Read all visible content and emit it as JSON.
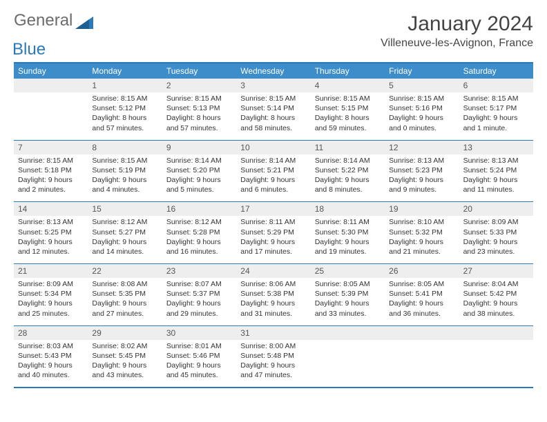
{
  "logo": {
    "word1": "General",
    "word2": "Blue"
  },
  "title": "January 2024",
  "location": "Villeneuve-les-Avignon, France",
  "day_headers": [
    "Sunday",
    "Monday",
    "Tuesday",
    "Wednesday",
    "Thursday",
    "Friday",
    "Saturday"
  ],
  "colors": {
    "header_bg": "#3c8dca",
    "border": "#2a7ab9",
    "daynum_bg": "#eeeeee",
    "text": "#333333",
    "logo_gray": "#6b6b6b",
    "logo_blue": "#2a7ab9"
  },
  "layout": {
    "columns": 7,
    "rows": 5,
    "cell_fontsize_pt": 8,
    "header_fontsize_pt": 9,
    "title_fontsize_pt": 22
  },
  "weeks": [
    {
      "days": [
        {
          "num": "",
          "sunrise": "",
          "sunset": "",
          "daylight1": "",
          "daylight2": ""
        },
        {
          "num": "1",
          "sunrise": "Sunrise: 8:15 AM",
          "sunset": "Sunset: 5:12 PM",
          "daylight1": "Daylight: 8 hours",
          "daylight2": "and 57 minutes."
        },
        {
          "num": "2",
          "sunrise": "Sunrise: 8:15 AM",
          "sunset": "Sunset: 5:13 PM",
          "daylight1": "Daylight: 8 hours",
          "daylight2": "and 57 minutes."
        },
        {
          "num": "3",
          "sunrise": "Sunrise: 8:15 AM",
          "sunset": "Sunset: 5:14 PM",
          "daylight1": "Daylight: 8 hours",
          "daylight2": "and 58 minutes."
        },
        {
          "num": "4",
          "sunrise": "Sunrise: 8:15 AM",
          "sunset": "Sunset: 5:15 PM",
          "daylight1": "Daylight: 8 hours",
          "daylight2": "and 59 minutes."
        },
        {
          "num": "5",
          "sunrise": "Sunrise: 8:15 AM",
          "sunset": "Sunset: 5:16 PM",
          "daylight1": "Daylight: 9 hours",
          "daylight2": "and 0 minutes."
        },
        {
          "num": "6",
          "sunrise": "Sunrise: 8:15 AM",
          "sunset": "Sunset: 5:17 PM",
          "daylight1": "Daylight: 9 hours",
          "daylight2": "and 1 minute."
        }
      ]
    },
    {
      "days": [
        {
          "num": "7",
          "sunrise": "Sunrise: 8:15 AM",
          "sunset": "Sunset: 5:18 PM",
          "daylight1": "Daylight: 9 hours",
          "daylight2": "and 2 minutes."
        },
        {
          "num": "8",
          "sunrise": "Sunrise: 8:15 AM",
          "sunset": "Sunset: 5:19 PM",
          "daylight1": "Daylight: 9 hours",
          "daylight2": "and 4 minutes."
        },
        {
          "num": "9",
          "sunrise": "Sunrise: 8:14 AM",
          "sunset": "Sunset: 5:20 PM",
          "daylight1": "Daylight: 9 hours",
          "daylight2": "and 5 minutes."
        },
        {
          "num": "10",
          "sunrise": "Sunrise: 8:14 AM",
          "sunset": "Sunset: 5:21 PM",
          "daylight1": "Daylight: 9 hours",
          "daylight2": "and 6 minutes."
        },
        {
          "num": "11",
          "sunrise": "Sunrise: 8:14 AM",
          "sunset": "Sunset: 5:22 PM",
          "daylight1": "Daylight: 9 hours",
          "daylight2": "and 8 minutes."
        },
        {
          "num": "12",
          "sunrise": "Sunrise: 8:13 AM",
          "sunset": "Sunset: 5:23 PM",
          "daylight1": "Daylight: 9 hours",
          "daylight2": "and 9 minutes."
        },
        {
          "num": "13",
          "sunrise": "Sunrise: 8:13 AM",
          "sunset": "Sunset: 5:24 PM",
          "daylight1": "Daylight: 9 hours",
          "daylight2": "and 11 minutes."
        }
      ]
    },
    {
      "days": [
        {
          "num": "14",
          "sunrise": "Sunrise: 8:13 AM",
          "sunset": "Sunset: 5:25 PM",
          "daylight1": "Daylight: 9 hours",
          "daylight2": "and 12 minutes."
        },
        {
          "num": "15",
          "sunrise": "Sunrise: 8:12 AM",
          "sunset": "Sunset: 5:27 PM",
          "daylight1": "Daylight: 9 hours",
          "daylight2": "and 14 minutes."
        },
        {
          "num": "16",
          "sunrise": "Sunrise: 8:12 AM",
          "sunset": "Sunset: 5:28 PM",
          "daylight1": "Daylight: 9 hours",
          "daylight2": "and 16 minutes."
        },
        {
          "num": "17",
          "sunrise": "Sunrise: 8:11 AM",
          "sunset": "Sunset: 5:29 PM",
          "daylight1": "Daylight: 9 hours",
          "daylight2": "and 17 minutes."
        },
        {
          "num": "18",
          "sunrise": "Sunrise: 8:11 AM",
          "sunset": "Sunset: 5:30 PM",
          "daylight1": "Daylight: 9 hours",
          "daylight2": "and 19 minutes."
        },
        {
          "num": "19",
          "sunrise": "Sunrise: 8:10 AM",
          "sunset": "Sunset: 5:32 PM",
          "daylight1": "Daylight: 9 hours",
          "daylight2": "and 21 minutes."
        },
        {
          "num": "20",
          "sunrise": "Sunrise: 8:09 AM",
          "sunset": "Sunset: 5:33 PM",
          "daylight1": "Daylight: 9 hours",
          "daylight2": "and 23 minutes."
        }
      ]
    },
    {
      "days": [
        {
          "num": "21",
          "sunrise": "Sunrise: 8:09 AM",
          "sunset": "Sunset: 5:34 PM",
          "daylight1": "Daylight: 9 hours",
          "daylight2": "and 25 minutes."
        },
        {
          "num": "22",
          "sunrise": "Sunrise: 8:08 AM",
          "sunset": "Sunset: 5:35 PM",
          "daylight1": "Daylight: 9 hours",
          "daylight2": "and 27 minutes."
        },
        {
          "num": "23",
          "sunrise": "Sunrise: 8:07 AM",
          "sunset": "Sunset: 5:37 PM",
          "daylight1": "Daylight: 9 hours",
          "daylight2": "and 29 minutes."
        },
        {
          "num": "24",
          "sunrise": "Sunrise: 8:06 AM",
          "sunset": "Sunset: 5:38 PM",
          "daylight1": "Daylight: 9 hours",
          "daylight2": "and 31 minutes."
        },
        {
          "num": "25",
          "sunrise": "Sunrise: 8:05 AM",
          "sunset": "Sunset: 5:39 PM",
          "daylight1": "Daylight: 9 hours",
          "daylight2": "and 33 minutes."
        },
        {
          "num": "26",
          "sunrise": "Sunrise: 8:05 AM",
          "sunset": "Sunset: 5:41 PM",
          "daylight1": "Daylight: 9 hours",
          "daylight2": "and 36 minutes."
        },
        {
          "num": "27",
          "sunrise": "Sunrise: 8:04 AM",
          "sunset": "Sunset: 5:42 PM",
          "daylight1": "Daylight: 9 hours",
          "daylight2": "and 38 minutes."
        }
      ]
    },
    {
      "days": [
        {
          "num": "28",
          "sunrise": "Sunrise: 8:03 AM",
          "sunset": "Sunset: 5:43 PM",
          "daylight1": "Daylight: 9 hours",
          "daylight2": "and 40 minutes."
        },
        {
          "num": "29",
          "sunrise": "Sunrise: 8:02 AM",
          "sunset": "Sunset: 5:45 PM",
          "daylight1": "Daylight: 9 hours",
          "daylight2": "and 43 minutes."
        },
        {
          "num": "30",
          "sunrise": "Sunrise: 8:01 AM",
          "sunset": "Sunset: 5:46 PM",
          "daylight1": "Daylight: 9 hours",
          "daylight2": "and 45 minutes."
        },
        {
          "num": "31",
          "sunrise": "Sunrise: 8:00 AM",
          "sunset": "Sunset: 5:48 PM",
          "daylight1": "Daylight: 9 hours",
          "daylight2": "and 47 minutes."
        },
        {
          "num": "",
          "sunrise": "",
          "sunset": "",
          "daylight1": "",
          "daylight2": ""
        },
        {
          "num": "",
          "sunrise": "",
          "sunset": "",
          "daylight1": "",
          "daylight2": ""
        },
        {
          "num": "",
          "sunrise": "",
          "sunset": "",
          "daylight1": "",
          "daylight2": ""
        }
      ]
    }
  ]
}
